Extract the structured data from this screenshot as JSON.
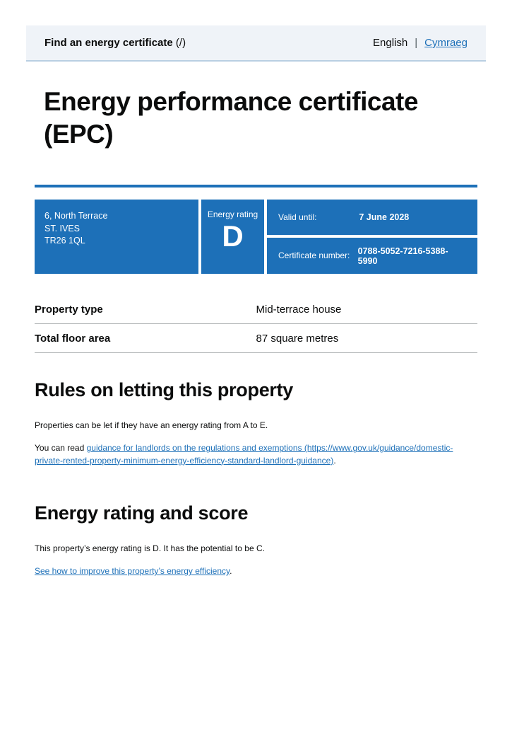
{
  "header": {
    "service_name": "Find an energy certificate",
    "service_suffix": " (/)",
    "language": {
      "current": "English",
      "divider": "|",
      "other": "Cymraeg"
    }
  },
  "page": {
    "title_line1": "Energy performance certificate",
    "title_line2": "(EPC)"
  },
  "summary_panel": {
    "address_lines": [
      "6, North Terrace",
      "ST. IVES",
      "TR26 1QL"
    ],
    "rating_label": "Energy rating",
    "rating_value": "D",
    "valid_until_label": "Valid until:",
    "valid_until_value": "7 June 2028",
    "certificate_number_label": "Certificate number:",
    "certificate_number_value": "0788-5052-7216-5388-5990"
  },
  "property_details": {
    "rows": [
      {
        "key": "Property type",
        "value": "Mid-terrace house"
      },
      {
        "key": "Total floor area",
        "value": "87 square metres"
      }
    ]
  },
  "letting_rules": {
    "heading": "Rules on letting this property",
    "paragraph1": "Properties can be let if they have an energy rating from A to E.",
    "paragraph2_before": "You can read ",
    "paragraph2_link": "guidance for landlords on the regulations and exemptions (https://www.gov.uk/guidance/domestic-private-rented-property-minimum-energy-efficiency-standard-landlord-guidance)",
    "paragraph2_after": "."
  },
  "energy_rating_section": {
    "heading": "Energy rating and score",
    "paragraph1": "This property’s energy rating is D. It has the potential to be C.",
    "link": "See how to improve this property’s energy efficiency",
    "link_after": "."
  },
  "colors": {
    "brand_blue": "#1d70b8",
    "header_background": "#eff3f8",
    "header_border": "#b9cfe2",
    "row_border_grey": "#b1b4b6",
    "text_black": "#0b0c0c"
  }
}
